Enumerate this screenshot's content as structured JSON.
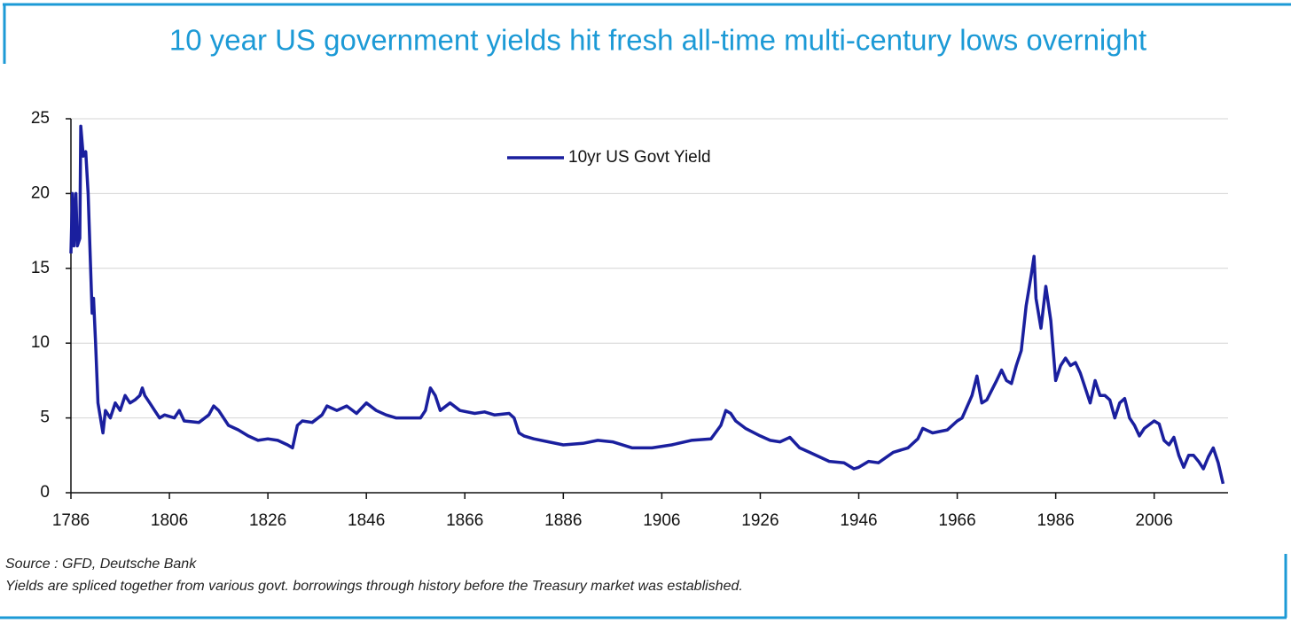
{
  "chart_data": {
    "type": "line",
    "title": "10 year US government yields hit fresh all-time multi-century lows overnight",
    "source": "Source : GFD, Deutsche Bank",
    "note": "Yields are spliced together from various govt. borrowings through history before the Treasury market was established.",
    "x": [
      1786,
      1786.3,
      1786.6,
      1787,
      1787.3,
      1787.8,
      1788,
      1788.5,
      1789,
      1789.5,
      1790,
      1790.3,
      1790.6,
      1791,
      1791.5,
      1792,
      1792.5,
      1793,
      1794,
      1795,
      1796,
      1797,
      1798,
      1799,
      1800,
      1800.5,
      1801,
      1802,
      1803,
      1804,
      1805,
      1807,
      1808,
      1809,
      1812,
      1814,
      1815,
      1816,
      1818,
      1820,
      1822,
      1824,
      1826,
      1828,
      1830,
      1831,
      1832,
      1833,
      1835,
      1837,
      1838,
      1840,
      1842,
      1844,
      1846,
      1848,
      1850,
      1852,
      1855,
      1857,
      1858,
      1859,
      1860,
      1861,
      1863,
      1865,
      1868,
      1870,
      1872,
      1875,
      1876,
      1877,
      1878,
      1880,
      1883,
      1886,
      1890,
      1893,
      1896,
      1900,
      1904,
      1908,
      1912,
      1916,
      1918,
      1919,
      1920,
      1921,
      1923,
      1926,
      1928,
      1930,
      1932,
      1934,
      1936,
      1938,
      1940,
      1943,
      1945,
      1946,
      1948,
      1950,
      1953,
      1956,
      1958,
      1959,
      1961,
      1964,
      1966,
      1967,
      1969,
      1970,
      1971,
      1972,
      1974,
      1975,
      1976,
      1977,
      1978,
      1979,
      1980,
      1981,
      1981.6,
      1982,
      1983,
      1984,
      1985,
      1986,
      1987,
      1988,
      1989,
      1990,
      1991,
      1993,
      1994,
      1995,
      1996,
      1997,
      1998,
      1999,
      2000,
      2001,
      2002,
      2003,
      2004,
      2006,
      2007,
      2008,
      2009,
      2010,
      2011,
      2012,
      2013,
      2014,
      2015,
      2016,
      2017,
      2018,
      2019,
      2020
    ],
    "series": [
      {
        "name": "10yr US Govt Yield",
        "color": "#1a1f9e",
        "values": [
          16,
          20,
          16.5,
          20,
          16.5,
          17,
          24.5,
          22.5,
          22.8,
          20,
          15,
          12,
          13,
          10,
          6,
          5,
          4,
          5.5,
          5,
          6,
          5.5,
          6.5,
          6,
          6.2,
          6.5,
          7,
          6.5,
          6,
          5.5,
          5,
          5.2,
          5,
          5.5,
          4.8,
          4.7,
          5.2,
          5.8,
          5.5,
          4.5,
          4.2,
          3.8,
          3.5,
          3.6,
          3.5,
          3.2,
          3.0,
          4.5,
          4.8,
          4.7,
          5.2,
          5.8,
          5.5,
          5.8,
          5.3,
          6,
          5.5,
          5.2,
          5,
          5,
          5,
          5.5,
          7,
          6.5,
          5.5,
          6,
          5.5,
          5.3,
          5.4,
          5.2,
          5.3,
          5,
          4,
          3.8,
          3.6,
          3.4,
          3.2,
          3.3,
          3.5,
          3.4,
          3,
          3.0,
          3.2,
          3.5,
          3.6,
          4.5,
          5.5,
          5.3,
          4.8,
          4.3,
          3.8,
          3.5,
          3.4,
          3.7,
          3.0,
          2.7,
          2.4,
          2.1,
          2.0,
          1.6,
          1.7,
          2.1,
          2.0,
          2.7,
          3.0,
          3.6,
          4.3,
          4.0,
          4.2,
          4.8,
          5.0,
          6.5,
          7.8,
          6.0,
          6.2,
          7.5,
          8.2,
          7.5,
          7.3,
          8.5,
          9.5,
          12.5,
          14.5,
          15.8,
          13,
          11,
          13.8,
          11.5,
          7.5,
          8.5,
          9,
          8.5,
          8.7,
          8,
          6,
          7.5,
          6.5,
          6.5,
          6.2,
          5,
          6,
          6.3,
          5,
          4.5,
          3.8,
          4.3,
          4.8,
          4.6,
          3.5,
          3.2,
          3.7,
          2.5,
          1.7,
          2.5,
          2.5,
          2.1,
          1.6,
          2.4,
          3.0,
          2.0,
          0.6
        ]
      }
    ],
    "xlim": [
      1786,
      2021
    ],
    "xticks": [
      1786,
      1806,
      1826,
      1846,
      1866,
      1886,
      1906,
      1926,
      1946,
      1966,
      1986,
      2006
    ],
    "ylim": [
      0,
      25
    ],
    "yticks": [
      0,
      5,
      10,
      15,
      20,
      25
    ],
    "grid": true,
    "legend": "top"
  }
}
